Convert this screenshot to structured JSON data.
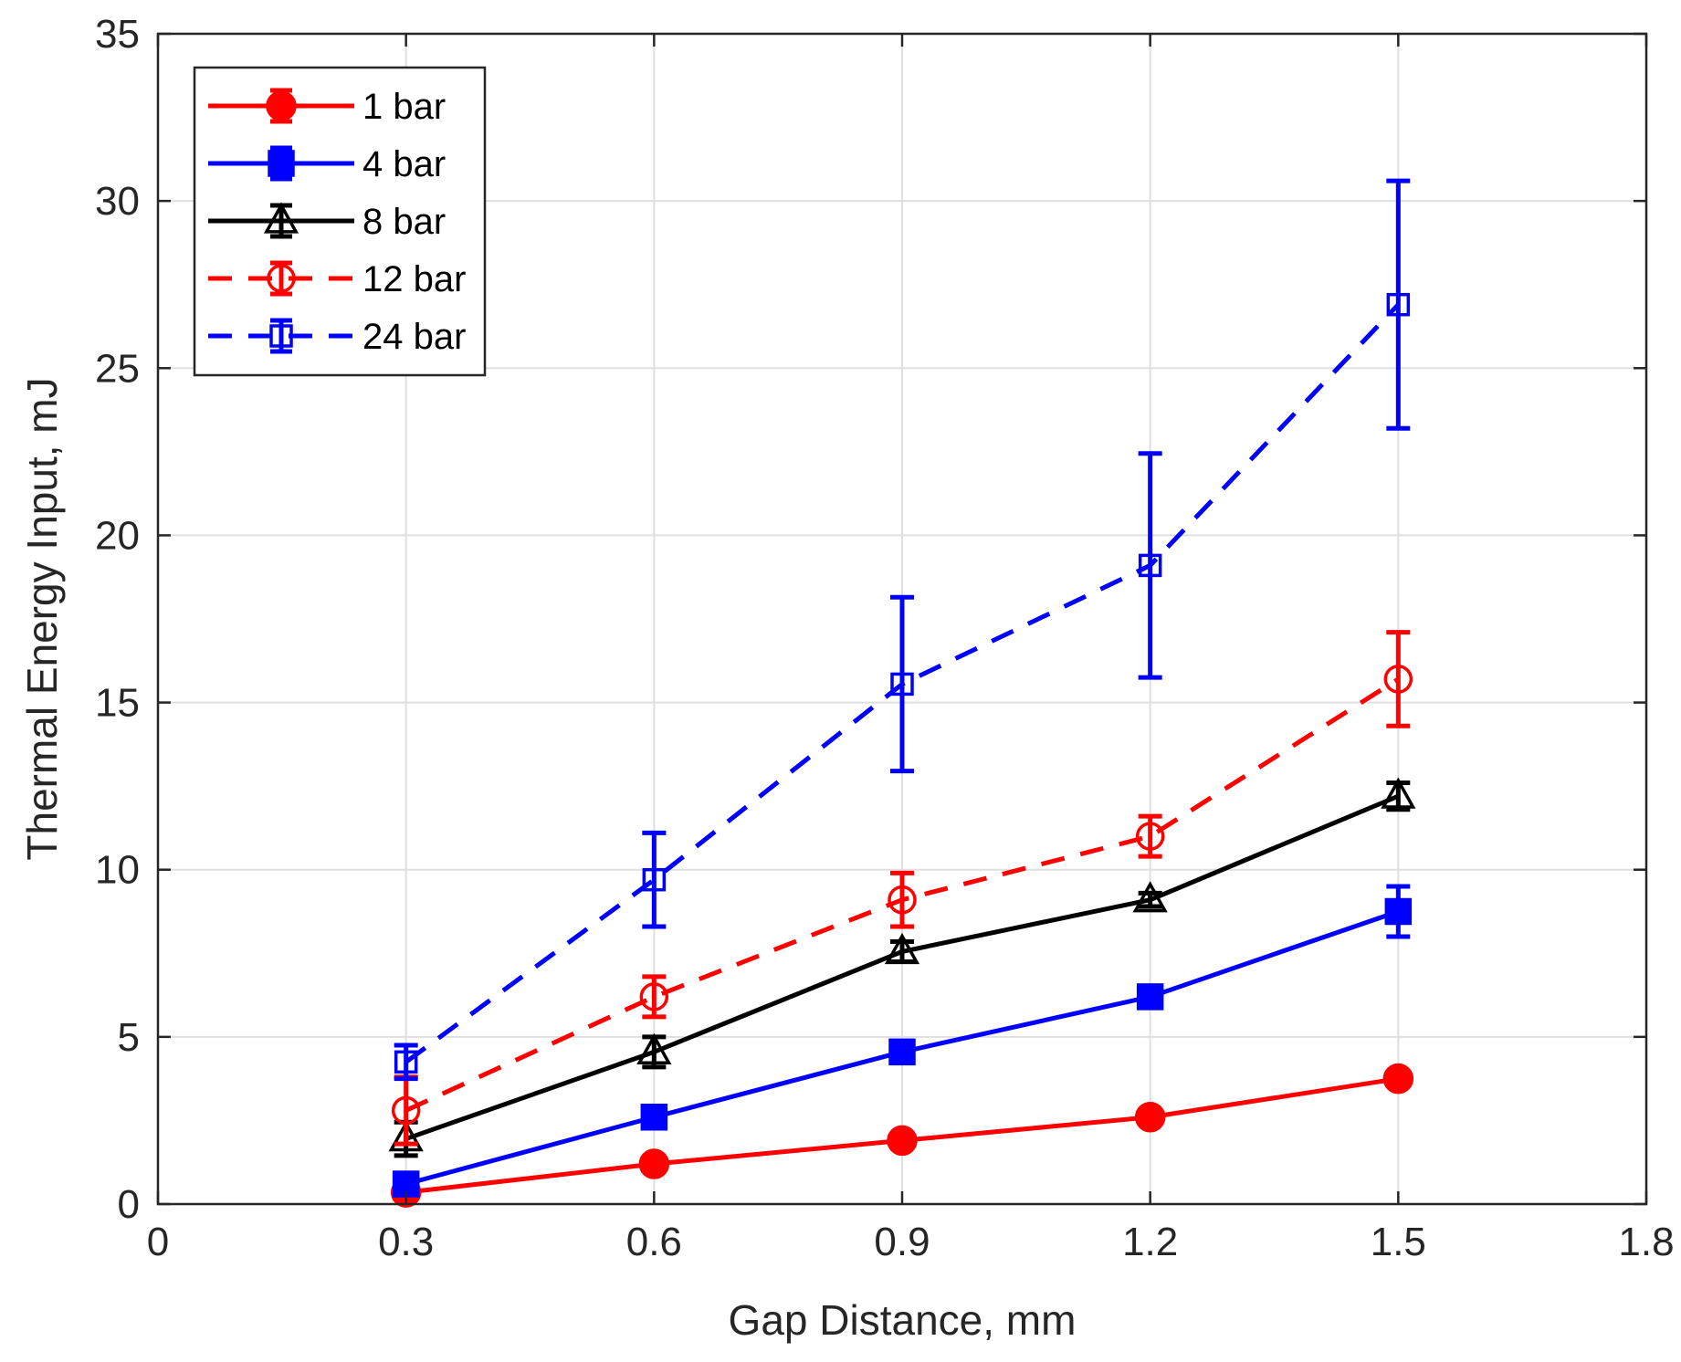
{
  "chart_data": {
    "type": "line",
    "title": "",
    "xlabel": "Gap Distance, mm",
    "ylabel": "Thermal Energy Input, mJ",
    "xlim": [
      0,
      1.8
    ],
    "ylim": [
      0,
      35
    ],
    "xticks": [
      "0",
      "0.3",
      "0.6",
      "0.9",
      "1.2",
      "1.5",
      "1.8"
    ],
    "yticks": [
      "0",
      "5",
      "10",
      "15",
      "20",
      "25",
      "30",
      "35"
    ],
    "grid": true,
    "legend_position": "top-left",
    "x": [
      0.3,
      0.6,
      0.9,
      1.2,
      1.5
    ],
    "series": [
      {
        "name": "1 bar",
        "color": "#ff0000",
        "line": "solid",
        "marker": "circle",
        "filled": true,
        "values": [
          0.35,
          1.2,
          1.9,
          2.6,
          3.75
        ],
        "errors": [
          0.1,
          0.1,
          0.1,
          0.1,
          0.2
        ]
      },
      {
        "name": "4 bar",
        "color": "#0000ff",
        "line": "solid",
        "marker": "square",
        "filled": true,
        "values": [
          0.6,
          2.6,
          4.55,
          6.2,
          8.75
        ],
        "errors": [
          0.15,
          0.15,
          0.15,
          0.15,
          0.75
        ]
      },
      {
        "name": "8 bar",
        "color": "#000000",
        "line": "solid",
        "marker": "triangle",
        "filled": false,
        "values": [
          1.95,
          4.55,
          7.55,
          9.1,
          12.2
        ],
        "errors": [
          0.5,
          0.45,
          0.3,
          0.2,
          0.4
        ]
      },
      {
        "name": "12 bar",
        "color": "#ff0000",
        "line": "dashed",
        "marker": "circle",
        "filled": false,
        "values": [
          2.8,
          6.2,
          9.1,
          11.0,
          15.7
        ],
        "errors": [
          1.0,
          0.6,
          0.8,
          0.6,
          1.4
        ]
      },
      {
        "name": "24 bar",
        "color": "#0000ff",
        "line": "dashed",
        "marker": "square",
        "filled": false,
        "values": [
          4.25,
          9.7,
          15.55,
          19.1,
          26.9
        ],
        "errors": [
          0.5,
          1.4,
          2.6,
          3.35,
          3.7
        ]
      }
    ]
  }
}
